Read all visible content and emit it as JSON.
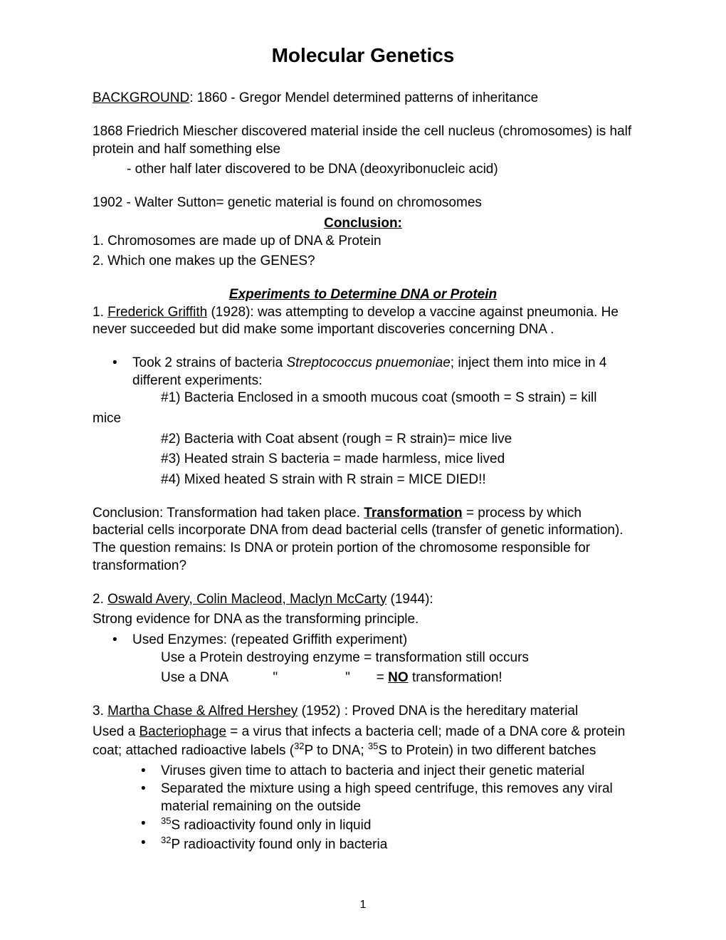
{
  "title": "Molecular Genetics",
  "background_label": "BACKGROUND",
  "background_text": ": 1860 - Gregor Mendel determined patterns of inheritance",
  "p1868_line1": "1868  Friedrich Miescher discovered material inside the cell nucleus (chromosomes) is half protein and half something else",
  "p1868_sub": "- other half later discovered to be DNA (deoxyribonucleic acid)",
  "p1902": "1902 - Walter Sutton= genetic material is found on chromosomes",
  "conclusion_heading": "Conclusion:",
  "conclusion_1": "1.  Chromosomes are made up of DNA & Protein",
  "conclusion_2": "2.  Which one makes up the GENES?",
  "section_heading": "Experiments to Determine DNA or Protein",
  "griffith_label": "Frederick Griffith",
  "griffith_prefix": "1.  ",
  "griffith_text": " (1928):  was attempting to develop a vaccine against pneumonia.  He never succeeded but did make some important discoveries concerning DNA .",
  "bullet1_pre": "Took 2 strains of bacteria ",
  "bullet1_italic": "Streptococcus pnuemoniae",
  "bullet1_post": "; inject them into mice in 4 different experiments:",
  "exp1": "#1) Bacteria Enclosed in a smooth mucous coat (smooth = S strain) = kill",
  "exp1_tail": "mice",
  "exp2": "#2) Bacteria with Coat absent (rough = R strain)= mice live",
  "exp3": "#3) Heated strain S bacteria = made harmless, mice lived",
  "exp4": "#4) Mixed heated S strain with R strain = MICE DIED!!",
  "conclusion_trans_pre": "Conclusion: Transformation had taken place. ",
  "transformation_label": "Transformation",
  "conclusion_trans_post": " = process by which bacterial cells incorporate DNA from dead bacterial cells (transfer of genetic information).  The question remains:  Is DNA or protein portion of the chromosome responsible for transformation?",
  "avery_prefix": "2.  ",
  "avery_label": "Oswald Avery, Colin Macleod, Maclyn McCarty",
  "avery_year": " (1944):",
  "avery_line2": "Strong evidence for DNA as the transforming principle.",
  "avery_bullet": "Used Enzymes:  (repeated Griffith experiment)",
  "avery_sub1": "Use a Protein destroying enzyme = transformation still occurs",
  "avery_sub2_pre": "Use a DNA            \"                  \"       = ",
  "avery_sub2_no": "NO",
  "avery_sub2_post": " transformation!",
  "hershey_prefix": "3.  ",
  "hershey_label": "Martha Chase & Alfred Hershey",
  "hershey_text": " (1952) : Proved DNA is the hereditary material",
  "hershey_p1_pre": "Used a ",
  "hershey_p1_bacterio": "Bacteriophage",
  "hershey_p1_mid": " = a virus that infects a bacteria cell; made of a DNA core & protein coat;  attached radioactive labels (",
  "hershey_p1_sup1": "32",
  "hershey_p1_p": "P to DNA; ",
  "hershey_p1_sup2": "35",
  "hershey_p1_s": "S to Protein) in two different batches",
  "hershey_b1": "Viruses given time to attach to bacteria and inject their genetic material",
  "hershey_b2": "Separated the mixture using a high speed centrifuge, this removes any viral material remaining on the outside",
  "hershey_b3_sup": "35",
  "hershey_b3": "S radioactivity found only in liquid",
  "hershey_b4_sup": "32",
  "hershey_b4": "P radioactivity found only in bacteria",
  "page_num": "1"
}
